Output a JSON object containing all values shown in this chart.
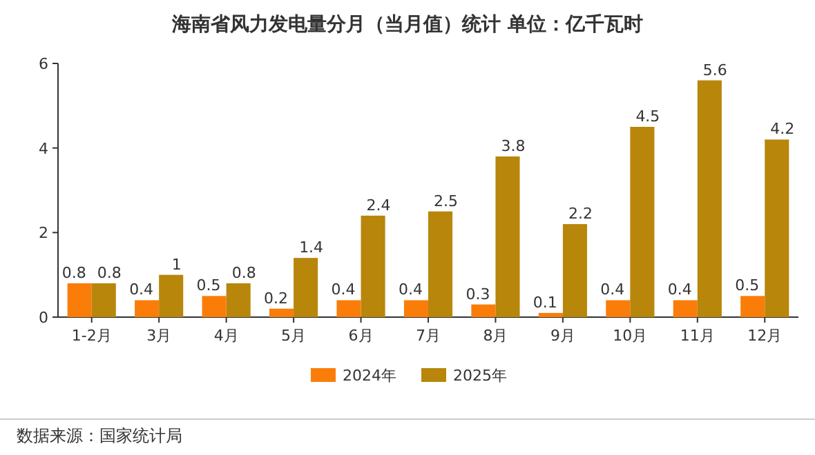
{
  "chart_data": {
    "type": "bar",
    "title": "海南省风力发电量分月（当月值）统计 单位：亿千瓦时",
    "categories": [
      "1-2月",
      "3月",
      "4月",
      "5月",
      "6月",
      "7月",
      "8月",
      "9月",
      "10月",
      "11月",
      "12月"
    ],
    "series": [
      {
        "name": "2024年",
        "color": "#fa7d0a",
        "values": [
          0.8,
          0.4,
          0.5,
          0.2,
          0.4,
          0.4,
          0.3,
          0.1,
          0.4,
          0.4,
          0.5
        ]
      },
      {
        "name": "2025年",
        "color": "#b8860b",
        "values": [
          0.8,
          1,
          0.8,
          1.4,
          2.4,
          2.5,
          3.8,
          2.2,
          4.5,
          5.6,
          4.2
        ]
      }
    ],
    "ylim": [
      0,
      6
    ],
    "yticks": [
      0,
      2,
      4,
      6
    ],
    "grid": false,
    "legend": "bottom",
    "data_labels": true,
    "annotations": [
      "数据来源：国家统计局"
    ]
  }
}
